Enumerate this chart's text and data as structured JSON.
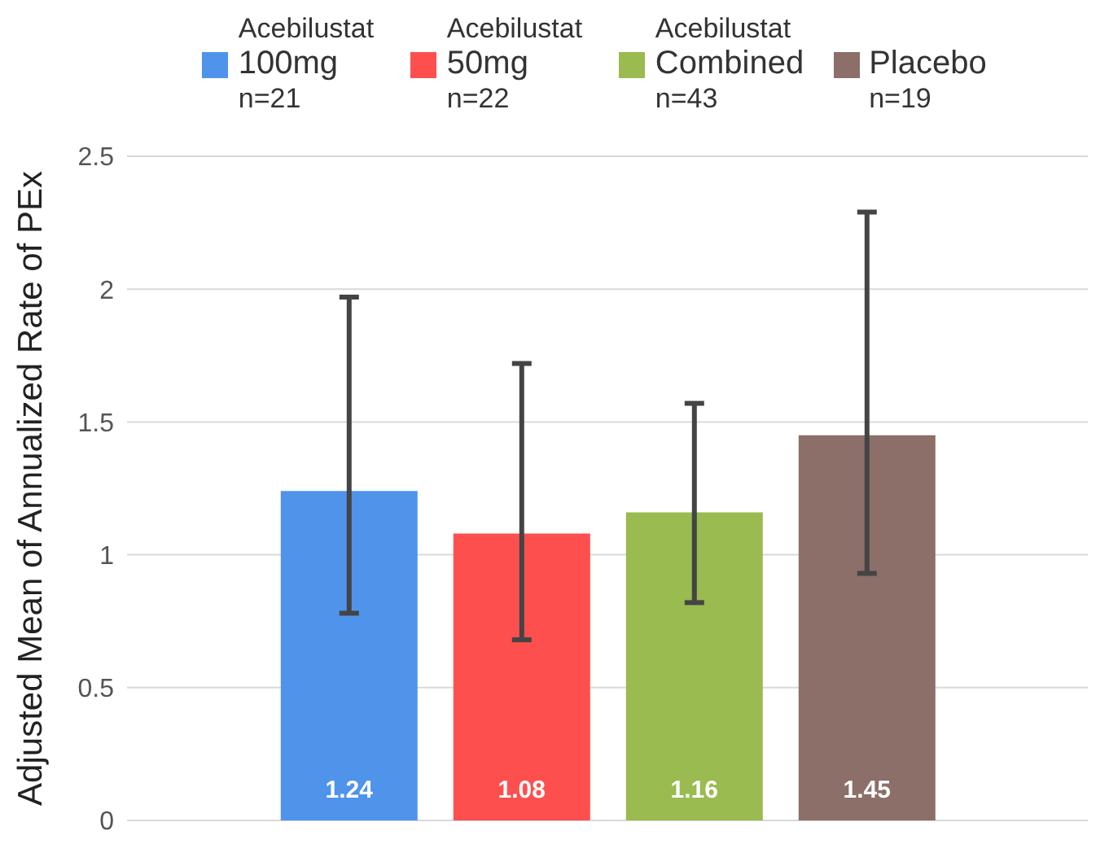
{
  "chart_data": {
    "type": "bar",
    "ylabel": "Adjusted Mean of Annualized Rate of PEx",
    "categories": [
      null
    ],
    "series": [
      {
        "name": "Acebilustat\n100mg\nn=21",
        "color": "#4f93eb",
        "values": [
          1.24
        ],
        "errors": [
          [
            0.78,
            1.97
          ]
        ]
      },
      {
        "name": "Acebilustat\n50mg\nn=22",
        "color": "#fe4f4f",
        "values": [
          1.08
        ],
        "errors": [
          [
            0.68,
            1.72
          ]
        ]
      },
      {
        "name": "Acebilustat\nCombined\nn=43",
        "color": "#99bb50",
        "values": [
          1.16
        ],
        "errors": [
          [
            0.82,
            1.57
          ]
        ]
      },
      {
        "name": "Placebo\nn=19",
        "color": "#8c6f68",
        "values": [
          1.45
        ],
        "errors": [
          [
            0.93,
            2.29
          ]
        ]
      }
    ],
    "ylim": [
      0,
      2.5
    ],
    "yticks": [
      0,
      0.5,
      1,
      1.5,
      2,
      2.5
    ],
    "grid": "y",
    "data_labels": true,
    "legend": "top"
  }
}
